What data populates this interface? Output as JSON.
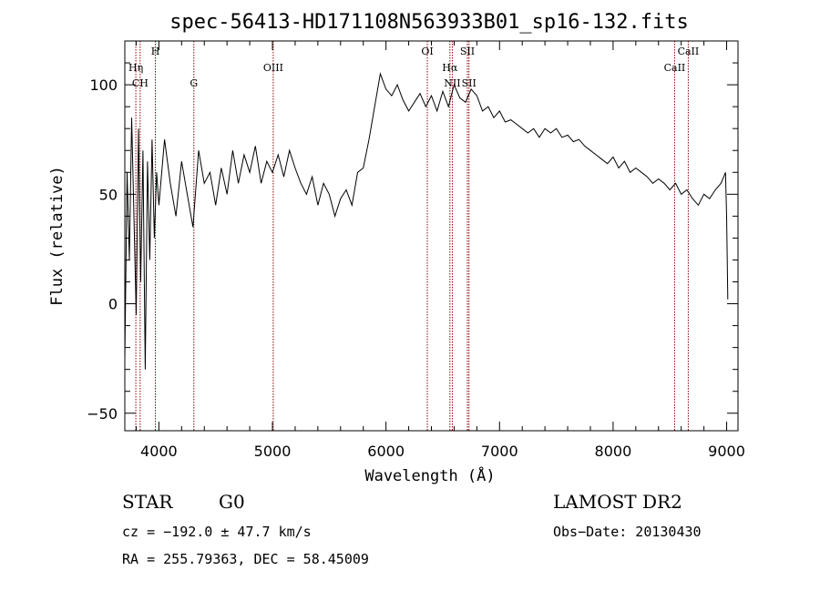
{
  "chart_data": {
    "type": "line",
    "title": "spec-56413-HD171108N563933B01_sp16-132.fits",
    "xlabel": "Wavelength (Å)",
    "ylabel": "Flux (relative)",
    "xlim": [
      3700,
      9100
    ],
    "ylim": [
      -58,
      120
    ],
    "x_ticks": [
      4000,
      5000,
      6000,
      7000,
      8000,
      9000
    ],
    "x_tick_labels": [
      "4000",
      "5000",
      "6000",
      "7000",
      "8000",
      "9000"
    ],
    "y_ticks": [
      -50,
      0,
      50,
      100
    ],
    "y_tick_labels": [
      "−50",
      "0",
      "50",
      "100"
    ],
    "series": [
      {
        "color": "#000000",
        "x": [
          3700,
          3720,
          3740,
          3760,
          3780,
          3800,
          3820,
          3840,
          3860,
          3880,
          3900,
          3920,
          3940,
          3960,
          3980,
          4000,
          4050,
          4100,
          4150,
          4200,
          4250,
          4300,
          4350,
          4400,
          4450,
          4500,
          4550,
          4600,
          4650,
          4700,
          4750,
          4800,
          4850,
          4900,
          4950,
          5000,
          5050,
          5100,
          5150,
          5200,
          5250,
          5300,
          5350,
          5400,
          5450,
          5500,
          5550,
          5600,
          5650,
          5700,
          5750,
          5800,
          5850,
          5900,
          5950,
          6000,
          6050,
          6100,
          6150,
          6200,
          6250,
          6300,
          6350,
          6400,
          6450,
          6500,
          6550,
          6600,
          6650,
          6700,
          6750,
          6800,
          6850,
          6900,
          6950,
          7000,
          7050,
          7100,
          7150,
          7200,
          7250,
          7300,
          7350,
          7400,
          7450,
          7500,
          7550,
          7600,
          7650,
          7700,
          7750,
          7800,
          7850,
          7900,
          7950,
          8000,
          8050,
          8100,
          8150,
          8200,
          8250,
          8300,
          8350,
          8400,
          8450,
          8500,
          8550,
          8600,
          8650,
          8700,
          8750,
          8800,
          8850,
          8900,
          8950,
          8990,
          9000,
          9010
        ],
        "y": [
          -25,
          60,
          20,
          85,
          40,
          -5,
          80,
          10,
          70,
          -30,
          65,
          20,
          75,
          30,
          60,
          45,
          75,
          55,
          40,
          65,
          50,
          35,
          70,
          55,
          60,
          45,
          62,
          50,
          70,
          55,
          68,
          60,
          72,
          55,
          65,
          60,
          68,
          58,
          70,
          62,
          55,
          50,
          58,
          45,
          55,
          50,
          40,
          48,
          52,
          45,
          60,
          62,
          75,
          90,
          105,
          98,
          95,
          100,
          93,
          88,
          92,
          96,
          90,
          95,
          88,
          97,
          90,
          100,
          94,
          92,
          98,
          95,
          88,
          90,
          85,
          88,
          83,
          84,
          82,
          80,
          78,
          80,
          76,
          80,
          78,
          80,
          76,
          77,
          74,
          75,
          72,
          70,
          68,
          66,
          64,
          67,
          62,
          65,
          60,
          62,
          60,
          58,
          55,
          57,
          55,
          52,
          55,
          50,
          52,
          48,
          45,
          50,
          48,
          52,
          55,
          60,
          40,
          2
        ]
      }
    ],
    "line_markers": [
      {
        "wave": 3797,
        "label": "Hη",
        "row": "mid"
      },
      {
        "wave": 3835,
        "label": "CH",
        "row": "low"
      },
      {
        "wave": 3969,
        "label": "H",
        "row": "high"
      },
      {
        "wave": 4308,
        "label": "G",
        "row": "low"
      },
      {
        "wave": 5007,
        "label": "OIII",
        "row": "mid"
      },
      {
        "wave": 6364,
        "label": "OI",
        "row": "high"
      },
      {
        "wave": 6563,
        "label": "Hα",
        "row": "mid"
      },
      {
        "wave": 6584,
        "label": "NII",
        "row": "low"
      },
      {
        "wave": 6717,
        "label": "SII",
        "row": "high"
      },
      {
        "wave": 6731,
        "label": "SII",
        "row": "low"
      },
      {
        "wave": 8542,
        "label": "CaII",
        "row": "mid"
      },
      {
        "wave": 8662,
        "label": "CaII",
        "row": "high"
      }
    ],
    "marker_color": "#8b0000",
    "grid": false
  },
  "info": {
    "class": "STAR",
    "subclass": "G0",
    "survey": "LAMOST DR2",
    "cz": "cz = −192.0 ± 47.7 km/s",
    "obs_date": "Obs−Date: 20130430",
    "radec": "RA = 255.79363, DEC =  58.45009"
  }
}
